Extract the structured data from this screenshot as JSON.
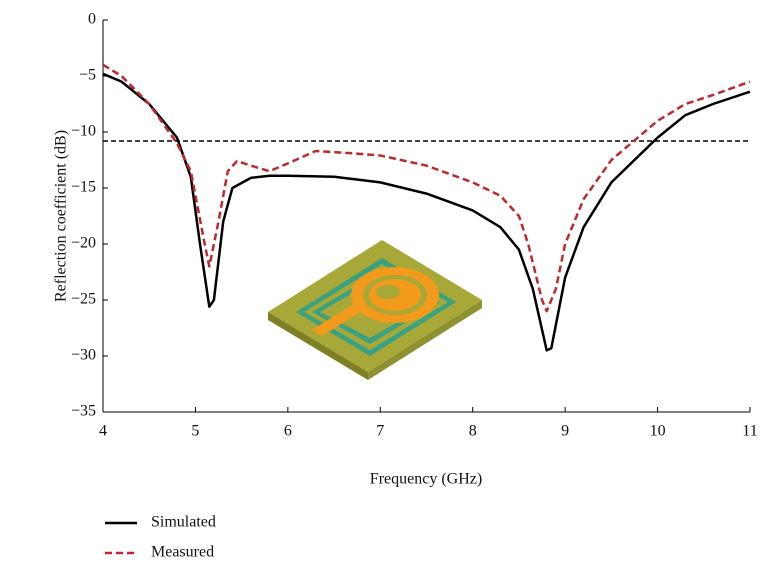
{
  "chart_data": {
    "type": "line",
    "x_label": "Frequency (GHz)",
    "y_label": "Reflection coefficient (dB)",
    "xlim": [
      4,
      11
    ],
    "xticks": [
      4,
      5,
      6,
      7,
      8,
      9,
      10,
      11
    ],
    "ylim": [
      -35,
      0
    ],
    "yticks": [
      {
        "value": -35,
        "label": "−35"
      },
      {
        "value": -30,
        "label": "−30"
      },
      {
        "value": -25,
        "label": "−25"
      },
      {
        "value": -20,
        "label": "−20"
      },
      {
        "value": -15,
        "label": "−15"
      },
      {
        "value": -10,
        "label": "−10"
      },
      {
        "value": -5,
        "label": "−5"
      },
      0
    ],
    "reference_line": -10.8,
    "grid": false,
    "series": [
      {
        "name": "Simulated",
        "color": "#000000",
        "dash": false,
        "x": [
          4,
          4.2,
          4.5,
          4.8,
          4.95,
          5.05,
          5.15,
          5.2,
          5.3,
          5.4,
          5.6,
          5.8,
          6,
          6.5,
          7,
          7.5,
          8,
          8.3,
          8.5,
          8.65,
          8.8,
          8.85,
          9,
          9.2,
          9.5,
          10,
          10.3,
          10.6,
          11
        ],
        "values": [
          -4.8,
          -5.5,
          -7.5,
          -10.5,
          -14,
          -20,
          -25.6,
          -25,
          -18,
          -15,
          -14.1,
          -13.9,
          -13.9,
          -14,
          -14.5,
          -15.5,
          -17,
          -18.5,
          -20.5,
          -24,
          -29.5,
          -29.3,
          -23,
          -18.5,
          -14.5,
          -10.5,
          -8.5,
          -7.5,
          -6.4
        ]
      },
      {
        "name": "Measured",
        "color": "#c0282d",
        "dash": true,
        "x": [
          4,
          4.2,
          4.5,
          4.8,
          4.95,
          5.1,
          5.15,
          5.25,
          5.35,
          5.45,
          5.6,
          5.8,
          6,
          6.3,
          6.7,
          7,
          7.5,
          8,
          8.3,
          8.5,
          8.6,
          8.75,
          8.8,
          8.9,
          9,
          9.2,
          9.5,
          10,
          10.3,
          10.6,
          11
        ],
        "values": [
          -4,
          -5,
          -7.5,
          -11,
          -13.5,
          -20,
          -22,
          -18,
          -13.5,
          -12.6,
          -13,
          -13.5,
          -12.8,
          -11.7,
          -11.9,
          -12.1,
          -13,
          -14.5,
          -15.7,
          -17.5,
          -20,
          -25,
          -26,
          -24,
          -20,
          -16,
          -12.5,
          -9,
          -7.5,
          -6.7,
          -5.5
        ]
      }
    ]
  }
}
